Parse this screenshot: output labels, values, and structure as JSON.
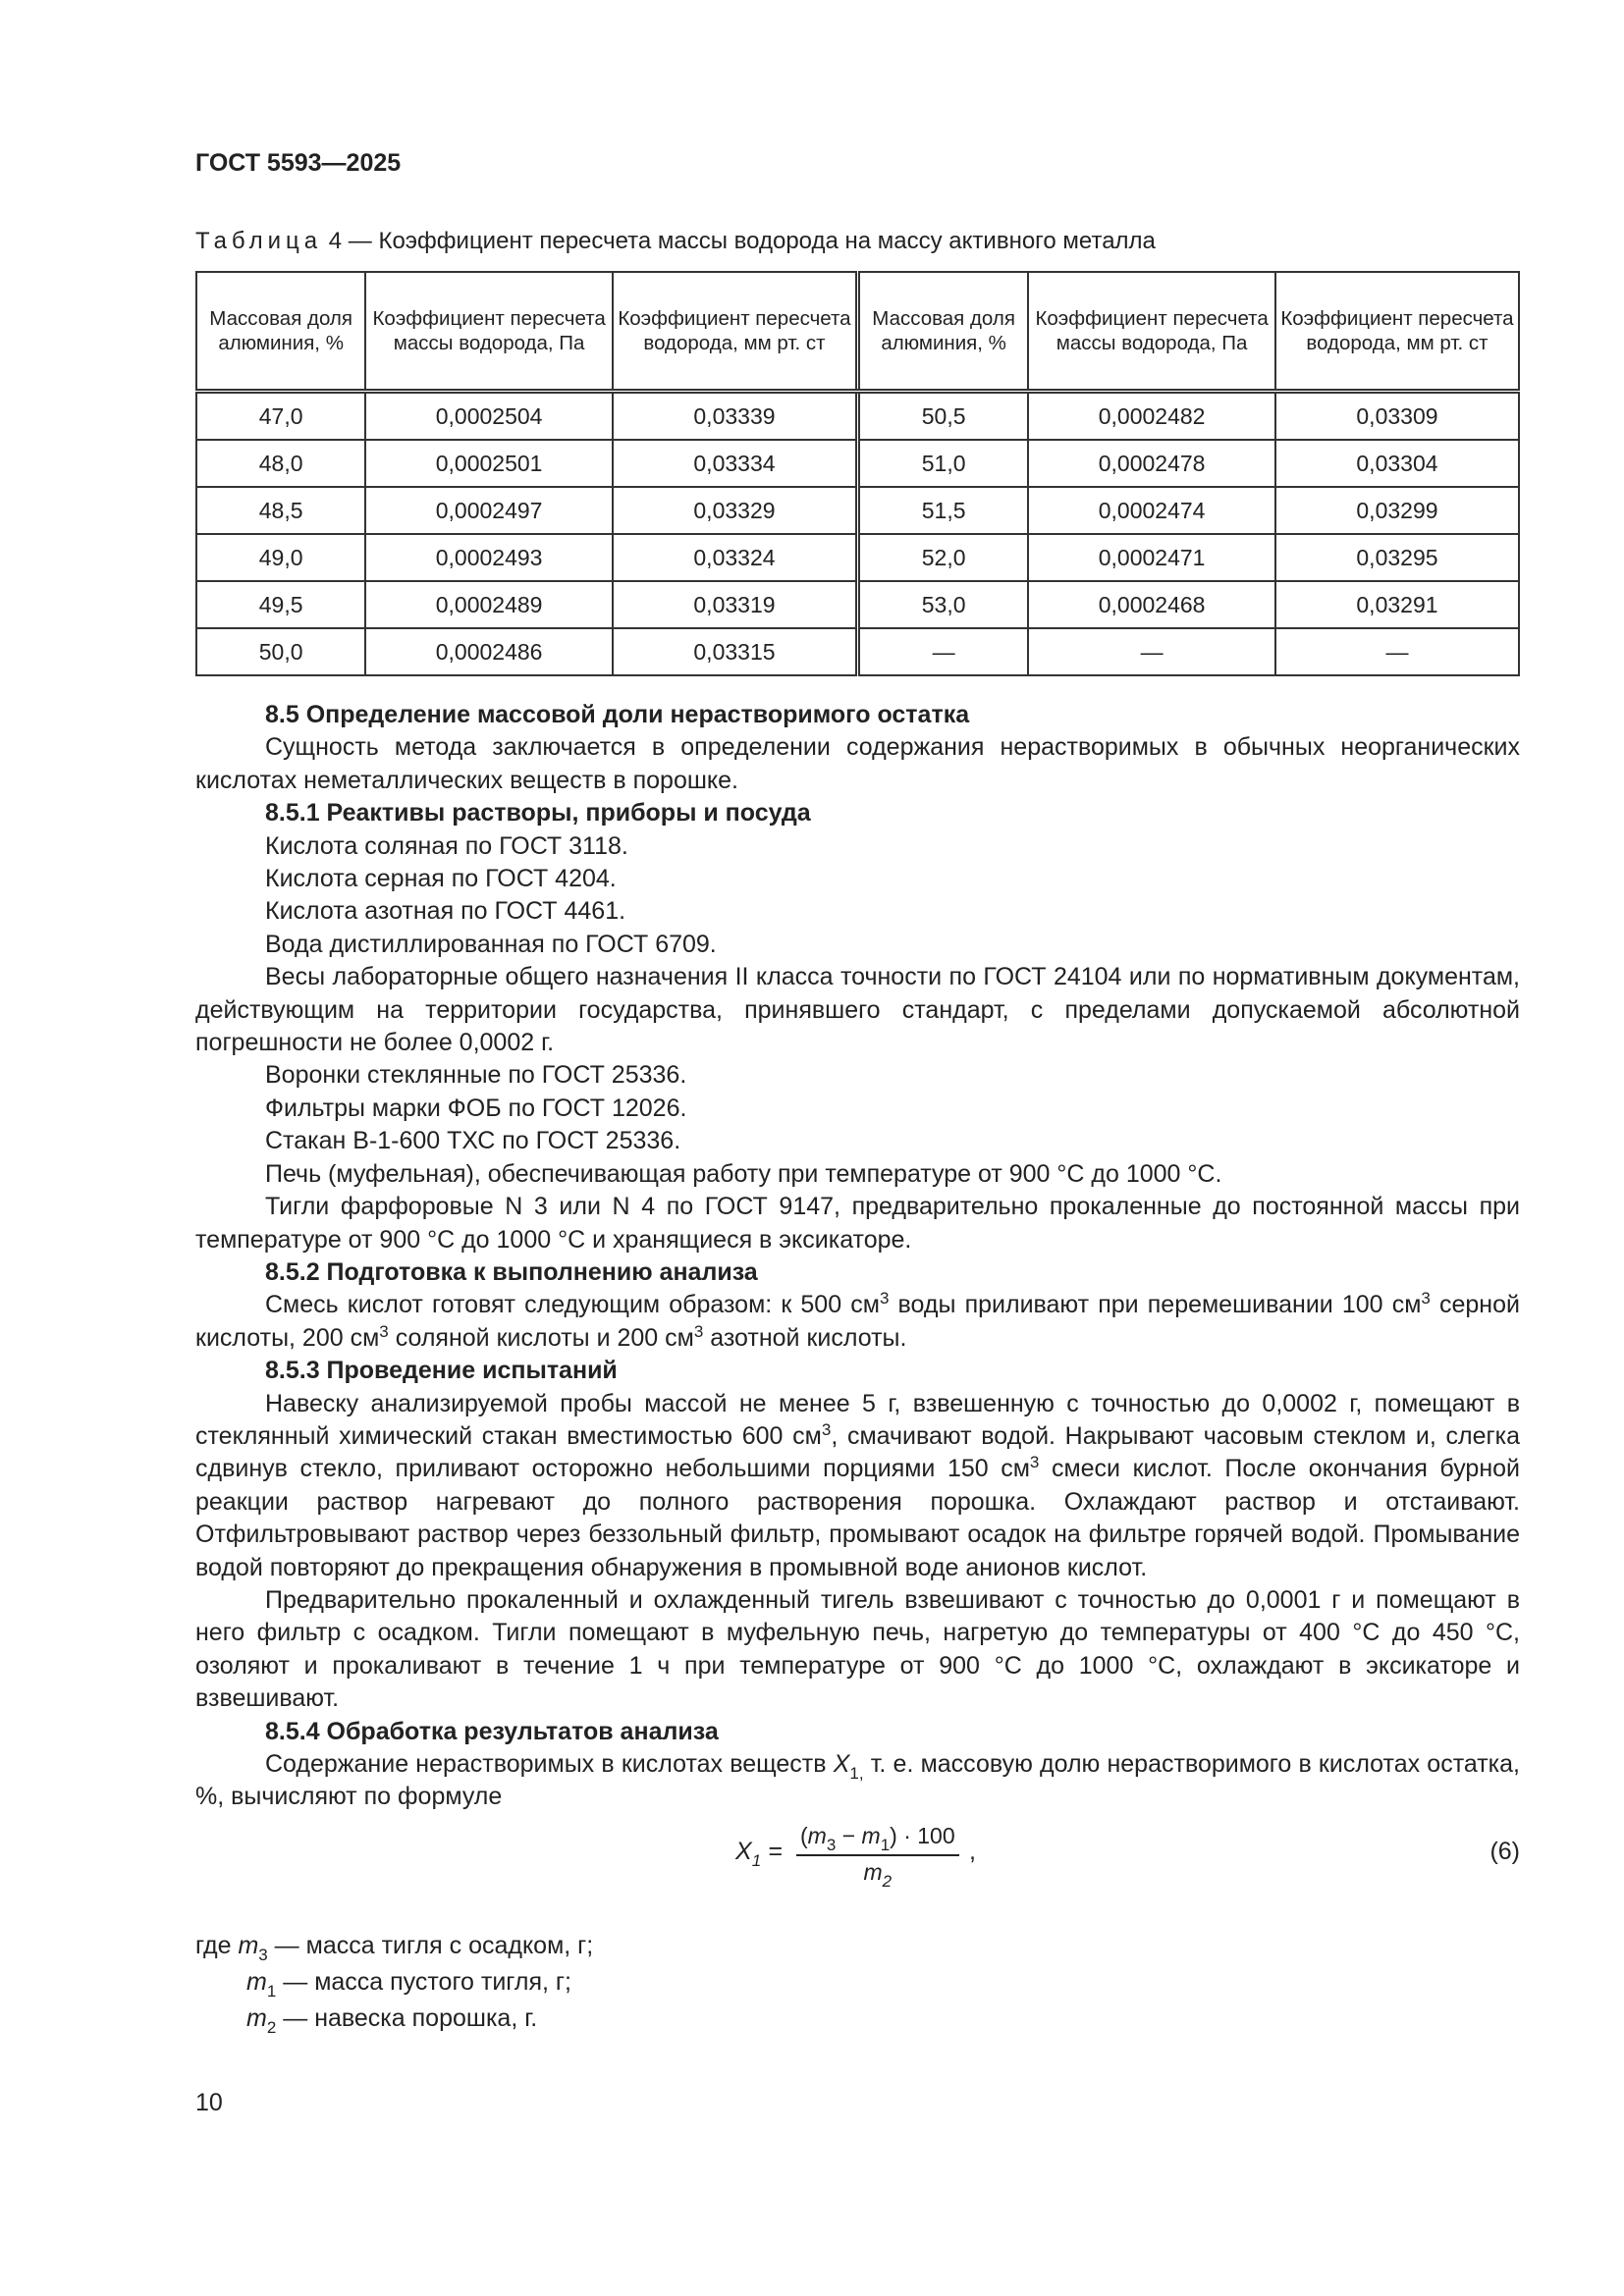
{
  "header": {
    "doc_id": "ГОСТ 5593—2025"
  },
  "table": {
    "caption_prefix": "Таблица",
    "caption_text": "4 — Коэффициент пересчета массы водорода на массу активного металла",
    "headers": [
      "Массовая доля алюминия, %",
      "Коэффициент пересчета массы водорода, Па",
      "Коэффициент пересчета водорода, мм рт. ст",
      "Массовая доля алюминия, %",
      "Коэффициент пересчета массы водорода, Па",
      "Коэффициент пересчета водорода, мм рт. ст"
    ],
    "rows": [
      [
        "47,0",
        "0,0002504",
        "0,03339",
        "50,5",
        "0,0002482",
        "0,03309"
      ],
      [
        "48,0",
        "0,0002501",
        "0,03334",
        "51,0",
        "0,0002478",
        "0,03304"
      ],
      [
        "48,5",
        "0,0002497",
        "0,03329",
        "51,5",
        "0,0002474",
        "0,03299"
      ],
      [
        "49,0",
        "0,0002493",
        "0,03324",
        "52,0",
        "0,0002471",
        "0,03295"
      ],
      [
        "49,5",
        "0,0002489",
        "0,03319",
        "53,0",
        "0,0002468",
        "0,03291"
      ],
      [
        "50,0",
        "0,0002486",
        "0,03315",
        "—",
        "—",
        "—"
      ]
    ]
  },
  "content": [
    {
      "type": "h",
      "parts": [
        {
          "t": "8.5 Определение массовой доли нерастворимого остатка"
        }
      ]
    },
    {
      "type": "p",
      "parts": [
        {
          "t": "Сущность метода заключается в определении содержания нерастворимых в обычных неорганических кислотах неметаллических веществ в порошке."
        }
      ]
    },
    {
      "type": "h",
      "parts": [
        {
          "t": "8.5.1 Реактивы растворы, приборы и посуда"
        }
      ]
    },
    {
      "type": "p",
      "parts": [
        {
          "t": "Кислота соляная по ГОСТ 3118."
        }
      ]
    },
    {
      "type": "p",
      "parts": [
        {
          "t": "Кислота серная по ГОСТ 4204."
        }
      ]
    },
    {
      "type": "p",
      "parts": [
        {
          "t": "Кислота азотная по ГОСТ 4461."
        }
      ]
    },
    {
      "type": "p",
      "parts": [
        {
          "t": "Вода дистиллированная по ГОСТ 6709."
        }
      ]
    },
    {
      "type": "p",
      "parts": [
        {
          "t": "Весы лабораторные общего назначения II класса точности по ГОСТ 24104 или по нормативным документам, действующим на территории государства, принявшего стандарт, с пределами допускаемой абсолютной погрешности не более 0,0002 г."
        }
      ]
    },
    {
      "type": "p",
      "parts": [
        {
          "t": "Воронки стеклянные по ГОСТ 25336."
        }
      ]
    },
    {
      "type": "p",
      "parts": [
        {
          "t": "Фильтры марки ФОБ по ГОСТ 12026."
        }
      ]
    },
    {
      "type": "p",
      "parts": [
        {
          "t": "Стакан В-1-600 ТХС по ГОСТ 25336."
        }
      ]
    },
    {
      "type": "p",
      "parts": [
        {
          "t": "Печь (муфельная), обеспечивающая работу при температуре от 900 °С до 1000 °С."
        }
      ]
    },
    {
      "type": "p",
      "parts": [
        {
          "t": "Тигли фарфоровые N 3 или N 4 по ГОСТ 9147, предварительно прокаленные до постоянной массы при температуре от 900 °С до 1000 °С и хранящиеся в эксикаторе."
        }
      ]
    },
    {
      "type": "h",
      "parts": [
        {
          "t": "8.5.2 Подготовка к выполнению анализа"
        }
      ]
    },
    {
      "type": "p",
      "parts": [
        {
          "t": "Смесь кислот готовят следующим образом: к 500 см"
        },
        {
          "sup": "3"
        },
        {
          "t": " воды приливают при перемешивании 100 см"
        },
        {
          "sup": "3"
        },
        {
          "t": " серной кислоты, 200 см"
        },
        {
          "sup": "3"
        },
        {
          "t": " соляной кислоты и 200 см"
        },
        {
          "sup": "3"
        },
        {
          "t": " азотной кислоты."
        }
      ]
    },
    {
      "type": "h",
      "parts": [
        {
          "t": "8.5.3 Проведение испытаний"
        }
      ]
    },
    {
      "type": "p",
      "parts": [
        {
          "t": "Навеску анализируемой пробы массой не менее 5 г, взвешенную с точностью до 0,0002 г, помещают в стеклянный химический стакан вместимостью 600 см"
        },
        {
          "sup": "3"
        },
        {
          "t": ", смачивают водой. Накрывают часовым стеклом и, слегка сдвинув стекло, приливают осторожно небольшими порциями 150 см"
        },
        {
          "sup": "3"
        },
        {
          "t": " смеси кислот. После окончания бурной реакции раствор нагревают до полного растворения порошка. Охлаждают раствор и отстаивают. Отфильтровывают раствор через беззольный фильтр, промывают осадок на фильтре горячей водой. Промывание водой повторяют до прекращения обнаружения в промывной воде анионов кислот."
        }
      ]
    },
    {
      "type": "p",
      "parts": [
        {
          "t": "Предварительно прокаленный и охлажденный тигель взвешивают с точностью до 0,0001 г и помещают в него фильтр с осадком. Тигли помещают в муфельную печь, нагретую до температуры от 400 °С до 450 °С, озоляют и прокаливают в течение 1 ч при температуре от 900 °С до 1000 °С, охлаждают в эксикаторе и взвешивают."
        }
      ]
    },
    {
      "type": "h",
      "parts": [
        {
          "t": "8.5.4 Обработка результатов анализа"
        }
      ]
    },
    {
      "type": "p",
      "parts": [
        {
          "t": "Содержание нерастворимых в кислотах веществ "
        },
        {
          "i": "X"
        },
        {
          "sub": "1,"
        },
        {
          "t": " т. е. массовую долю нерастворимого в кислотах остатка, %, вычисляют по формуле"
        }
      ]
    }
  ],
  "formula": {
    "lhs": "X",
    "lhs_sub": "1",
    "numerator": "(m3 − m1) · 100",
    "denominator": "m2",
    "number": "(6)"
  },
  "where": [
    {
      "prefix": "где ",
      "var": "m",
      "sub": "3",
      "text": " — масса тигля с осадком, г;"
    },
    {
      "prefix": "",
      "var": "m",
      "sub": "1",
      "text": " — масса пустого тигля, г;"
    },
    {
      "prefix": "",
      "var": "m",
      "sub": "2",
      "text": " — навеска порошка, г."
    }
  ],
  "footer": {
    "page_number": "10"
  }
}
